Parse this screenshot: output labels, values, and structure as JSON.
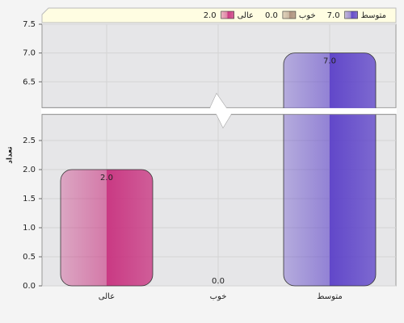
{
  "chart_data": {
    "type": "bar",
    "y_label": "تعداد",
    "categories": [
      "عالی",
      "خوب",
      "متوسط"
    ],
    "values": [
      2,
      0,
      7
    ],
    "value_labels": [
      "2.0",
      "0.0",
      "7.0"
    ],
    "colors": [
      "#c8307e",
      "#a88a78",
      "#5a3fc8"
    ],
    "ylim": [
      0,
      7.5
    ],
    "y_break": [
      2.95,
      6.05
    ],
    "yticks": [
      {
        "value": 0,
        "label": "0.0"
      },
      {
        "value": 0.5,
        "label": "0.5"
      },
      {
        "value": 1,
        "label": "1.0"
      },
      {
        "value": 1.5,
        "label": "1.5"
      },
      {
        "value": 2,
        "label": "2.0"
      },
      {
        "value": 2.5,
        "label": "2.5"
      },
      {
        "value": 6.5,
        "label": "6.5"
      },
      {
        "value": 7,
        "label": "7.0"
      },
      {
        "value": 7.5,
        "label": "7.5"
      }
    ],
    "grid": true,
    "legend": "top"
  }
}
